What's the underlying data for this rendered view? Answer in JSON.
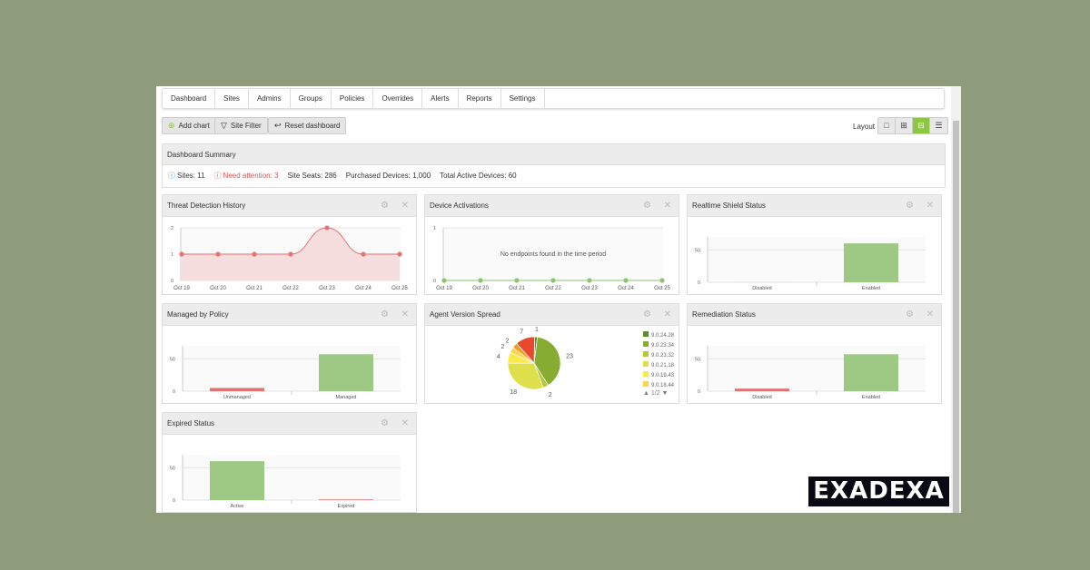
{
  "nav": {
    "tabs": [
      "Dashboard",
      "Sites",
      "Admins",
      "Groups",
      "Policies",
      "Overrides",
      "Alerts",
      "Reports",
      "Settings"
    ]
  },
  "toolbar": {
    "add_chart": "Add chart",
    "site_filter": "Site Filter",
    "reset_dashboard": "Reset dashboard",
    "layout_label": "Layout",
    "layout_options": [
      "single",
      "grid-2x2",
      "grid-3col",
      "list"
    ],
    "layout_selected": "grid-3col"
  },
  "summary": {
    "title": "Dashboard Summary",
    "sites": "Sites: 11",
    "need_attention": "Need attention: 3",
    "site_seats": "Site Seats: 286",
    "purchased": "Purchased Devices: 1,000",
    "active": "Total Active Devices: 60"
  },
  "colors": {
    "accent": "#8dc63f",
    "alert": "#d9534f",
    "bar_green": "#9dc985",
    "bar_red": "#e07474",
    "line": "#e57373"
  },
  "logo": "EXADEXA",
  "panels": {
    "threat": {
      "title": "Threat Detection History"
    },
    "activations": {
      "title": "Device Activations",
      "empty": "No endpoints found in the time period"
    },
    "shield": {
      "title": "Realtime Shield Status"
    },
    "policy": {
      "title": "Managed by Policy"
    },
    "version": {
      "title": "Agent Version Spread",
      "pager": "1/2"
    },
    "remediation": {
      "title": "Remediation Status"
    },
    "expired": {
      "title": "Expired Status"
    }
  },
  "chart_data": [
    {
      "id": "threat",
      "type": "area",
      "categories": [
        "Oct 19",
        "Oct 20",
        "Oct 21",
        "Oct 22",
        "Oct 23",
        "Oct 24",
        "Oct 25"
      ],
      "values": [
        1,
        1,
        1,
        1,
        2,
        1,
        1
      ],
      "yticks": [
        0,
        1,
        2
      ],
      "ylim": [
        0,
        2
      ]
    },
    {
      "id": "activations",
      "type": "line",
      "categories": [
        "Oct 19",
        "Oct 20",
        "Oct 21",
        "Oct 22",
        "Oct 23",
        "Oct 24",
        "Oct 25"
      ],
      "values": [
        0,
        0,
        0,
        0,
        0,
        0,
        0
      ],
      "yticks": [
        0,
        1
      ],
      "ylim": [
        0,
        1
      ]
    },
    {
      "id": "shield",
      "type": "bar",
      "categories": [
        "Disabled",
        "Enabled"
      ],
      "values": [
        0,
        60
      ],
      "yticks": [
        0,
        50
      ],
      "ylim": [
        0,
        70
      ]
    },
    {
      "id": "policy",
      "type": "bar",
      "categories": [
        "Unmanaged",
        "Managed"
      ],
      "values": [
        5,
        57
      ],
      "yticks": [
        0,
        50
      ],
      "ylim": [
        0,
        70
      ]
    },
    {
      "id": "version",
      "type": "pie",
      "legend": [
        "9.0.24.28",
        "9.0.23.34",
        "9.0.23.32",
        "9.0.21.18",
        "9.0.19.43",
        "9.0.18.44"
      ],
      "values": [
        1,
        23,
        2,
        18,
        4,
        2,
        2,
        7
      ],
      "colors": [
        "#5a8f29",
        "#86ad32",
        "#b5c936",
        "#dde04a",
        "#fbe84a",
        "#fdd54a",
        "#f39c24",
        "#e8482e"
      ]
    },
    {
      "id": "remediation",
      "type": "bar",
      "categories": [
        "Disabled",
        "Enabled"
      ],
      "values": [
        4,
        57
      ],
      "yticks": [
        0,
        50
      ],
      "ylim": [
        0,
        70
      ]
    },
    {
      "id": "expired",
      "type": "bar",
      "categories": [
        "Active",
        "Expired"
      ],
      "values": [
        60,
        1
      ],
      "yticks": [
        0,
        50
      ],
      "ylim": [
        0,
        70
      ]
    }
  ]
}
